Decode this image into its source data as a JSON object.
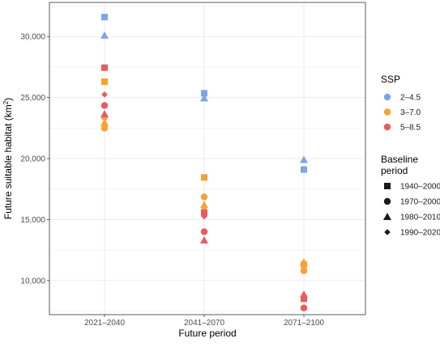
{
  "chart_data": {
    "type": "scatter",
    "xlabel": "Future period",
    "ylabel": "Future suitable habitat (km",
    "ylabel_sup": "2",
    "ylabel_close": ")",
    "categories": [
      "2021–2040",
      "2041–2070",
      "2071–2100"
    ],
    "y_ticks": [
      10000,
      15000,
      20000,
      25000,
      30000
    ],
    "y_tick_labels": [
      "10,000",
      "15,000",
      "20,000",
      "25,000",
      "30,000"
    ],
    "ylim": [
      7200,
      32800
    ],
    "grid": true,
    "legend_position": "right",
    "ssp_legend": {
      "title": "SSP",
      "items": [
        {
          "label": "2–4.5",
          "color": "#7aa6e8"
        },
        {
          "label": "3–7.0",
          "color": "#f5a233"
        },
        {
          "label": "5–8.5",
          "color": "#ea5a5e"
        }
      ]
    },
    "baseline_legend": {
      "title_line1": "Baseline",
      "title_line2": "period",
      "items": [
        {
          "label": "1940–2000",
          "shape": "square"
        },
        {
          "label": "1970–2000",
          "shape": "circle"
        },
        {
          "label": "1980–2010",
          "shape": "triangle"
        },
        {
          "label": "1990–2020",
          "shape": "diamond"
        }
      ]
    },
    "points": [
      {
        "category": "2021–2040",
        "ssp": "2–4.5",
        "baseline": "1940–2000",
        "y": 31600
      },
      {
        "category": "2021–2040",
        "ssp": "2–4.5",
        "baseline": "1980–2010",
        "y": 30100
      },
      {
        "category": "2021–2040",
        "ssp": "5–8.5",
        "baseline": "1940–2000",
        "y": 27450
      },
      {
        "category": "2021–2040",
        "ssp": "3–7.0",
        "baseline": "1940–2000",
        "y": 26300
      },
      {
        "category": "2021–2040",
        "ssp": "5–8.5",
        "baseline": "1990–2020",
        "y": 25250
      },
      {
        "category": "2021–2040",
        "ssp": "5–8.5",
        "baseline": "1970–2000",
        "y": 24350
      },
      {
        "category": "2021–2040",
        "ssp": "3–7.0",
        "baseline": "1970–2000",
        "y": 23400
      },
      {
        "category": "2021–2040",
        "ssp": "5–8.5",
        "baseline": "1980–2010",
        "y": 23650
      },
      {
        "category": "2021–2040",
        "ssp": "3–7.0",
        "baseline": "1980–2010",
        "y": 22950
      },
      {
        "category": "2021–2040",
        "ssp": "3–7.0",
        "baseline": "1990–2020",
        "y": 22750
      },
      {
        "category": "2021–2040",
        "ssp": "3–7.0",
        "baseline": "1970–2000",
        "y": 22500
      },
      {
        "category": "2041–2070",
        "ssp": "2–4.5",
        "baseline": "1940–2000",
        "y": 25350
      },
      {
        "category": "2041–2070",
        "ssp": "2–4.5",
        "baseline": "1980–2010",
        "y": 24950
      },
      {
        "category": "2041–2070",
        "ssp": "3–7.0",
        "baseline": "1940–2000",
        "y": 18450
      },
      {
        "category": "2041–2070",
        "ssp": "3–7.0",
        "baseline": "1970–2000",
        "y": 16850
      },
      {
        "category": "2041–2070",
        "ssp": "3–7.0",
        "baseline": "1980–2010",
        "y": 16200
      },
      {
        "category": "2041–2070",
        "ssp": "3–7.0",
        "baseline": "1990–2020",
        "y": 15850
      },
      {
        "category": "2041–2070",
        "ssp": "5–8.5",
        "baseline": "1940–2000",
        "y": 15550
      },
      {
        "category": "2041–2070",
        "ssp": "5–8.5",
        "baseline": "1990–2020",
        "y": 15250
      },
      {
        "category": "2041–2070",
        "ssp": "5–8.5",
        "baseline": "1970–2000",
        "y": 14000
      },
      {
        "category": "2041–2070",
        "ssp": "5–8.5",
        "baseline": "1980–2010",
        "y": 13300
      },
      {
        "category": "2071–2100",
        "ssp": "2–4.5",
        "baseline": "1980–2010",
        "y": 19900
      },
      {
        "category": "2071–2100",
        "ssp": "2–4.5",
        "baseline": "1940–2000",
        "y": 19100
      },
      {
        "category": "2071–2100",
        "ssp": "3–7.0",
        "baseline": "1980–2010",
        "y": 11500
      },
      {
        "category": "2071–2100",
        "ssp": "3–7.0",
        "baseline": "1940–2000",
        "y": 11300
      },
      {
        "category": "2071–2100",
        "ssp": "3–7.0",
        "baseline": "1990–2020",
        "y": 11150
      },
      {
        "category": "2071–2100",
        "ssp": "3–7.0",
        "baseline": "1970–2000",
        "y": 10800
      },
      {
        "category": "2071–2100",
        "ssp": "5–8.5",
        "baseline": "1980–2010",
        "y": 8850
      },
      {
        "category": "2071–2100",
        "ssp": "5–8.5",
        "baseline": "1990–2020",
        "y": 8700
      },
      {
        "category": "2071–2100",
        "ssp": "5–8.5",
        "baseline": "1940–2000",
        "y": 8500
      },
      {
        "category": "2071–2100",
        "ssp": "5–8.5",
        "baseline": "1970–2000",
        "y": 7750
      }
    ]
  }
}
